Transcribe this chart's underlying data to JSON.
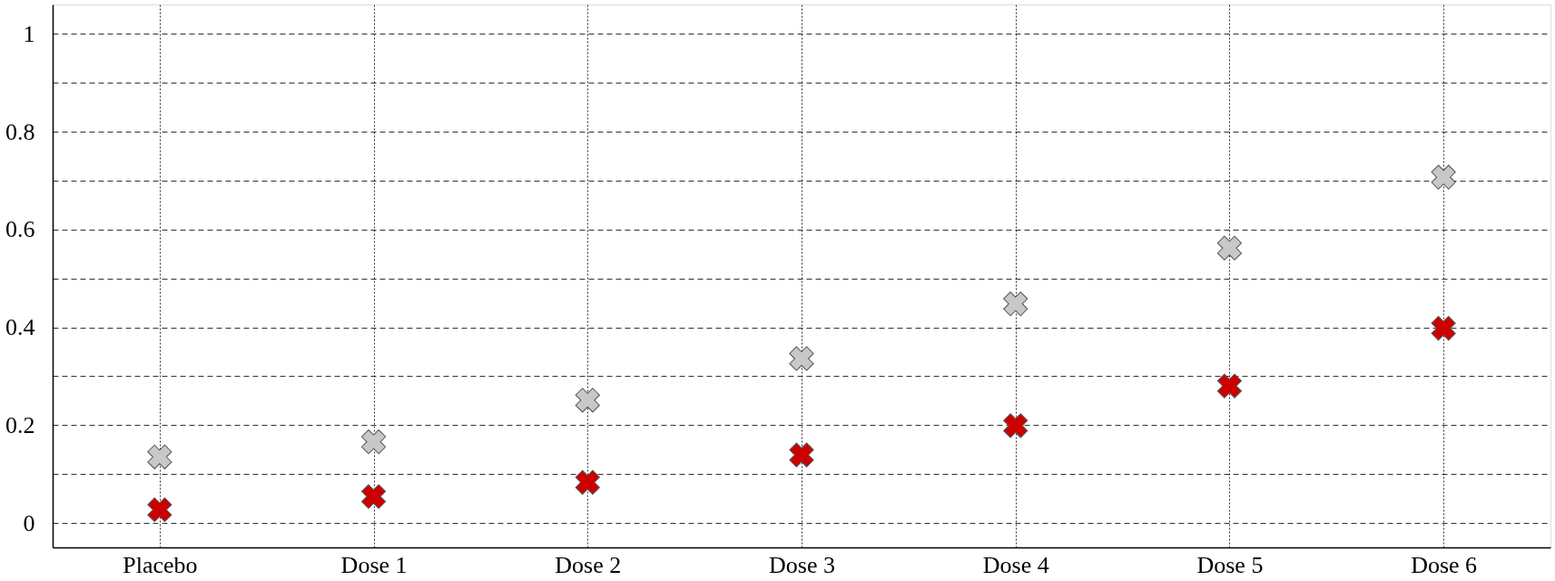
{
  "chart_data": {
    "type": "scatter",
    "categories": [
      "Placebo",
      "Dose 1",
      "Dose 2",
      "Dose 3",
      "Dose 4",
      "Dose 5",
      "Dose 6"
    ],
    "series": [
      {
        "color": "#c8c8c8",
        "values": [
          0.135,
          0.166,
          0.251,
          0.336,
          0.448,
          0.562,
          0.707
        ]
      },
      {
        "color": "#cc0000",
        "values": [
          0.027,
          0.054,
          0.083,
          0.139,
          0.199,
          0.28,
          0.398
        ]
      }
    ],
    "ylim": [
      -0.05,
      1.06
    ],
    "yticks": [
      0,
      {
        "value": 0.1,
        "label": null
      },
      0.2,
      {
        "value": 0.3,
        "label": null
      },
      0.4,
      {
        "value": 0.5,
        "label": null
      },
      0.6,
      {
        "value": 0.7,
        "label": null
      },
      0.8,
      {
        "value": 0.9,
        "label": null
      },
      1
    ],
    "grid": true,
    "legend": false,
    "marker": "cross"
  }
}
